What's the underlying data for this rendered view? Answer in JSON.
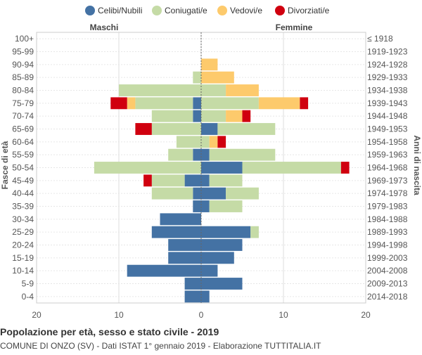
{
  "chart_data": {
    "type": "bar",
    "orientation": "horizontal-pyramid",
    "title": "Popolazione per età, sesso e stato civile - 2019",
    "subtitle": "COMUNE DI ONZO (SV) - Dati ISTAT 1° gennaio 2019 - Elaborazione TUTTITALIA.IT",
    "left_label": "Maschi",
    "right_label": "Femmine",
    "ylabel_left": "Fasce di età",
    "ylabel_right": "Anni di nascita",
    "xlim": [
      -20,
      20
    ],
    "xticks": [
      {
        "value": -20,
        "label": "20"
      },
      {
        "value": -10,
        "label": "10"
      },
      {
        "value": 0,
        "label": "0"
      },
      {
        "value": 10,
        "label": "10"
      },
      {
        "value": 20,
        "label": "20"
      }
    ],
    "series": [
      {
        "key": "celibi",
        "name": "Celibi/Nubili",
        "color": "#4472a4"
      },
      {
        "key": "coniugati",
        "name": "Coniugati/e",
        "color": "#c5dba6"
      },
      {
        "key": "vedovi",
        "name": "Vedovi/e",
        "color": "#fdca6c"
      },
      {
        "key": "divorziati",
        "name": "Divorziati/e",
        "color": "#d0000f"
      }
    ],
    "age_groups": [
      "100+",
      "95-99",
      "90-94",
      "85-89",
      "80-84",
      "75-79",
      "70-74",
      "65-69",
      "60-64",
      "55-59",
      "50-54",
      "45-49",
      "40-44",
      "35-39",
      "30-34",
      "25-29",
      "20-24",
      "15-19",
      "10-14",
      "5-9",
      "0-4"
    ],
    "birth_years": [
      "≤ 1918",
      "1919-1923",
      "1924-1928",
      "1929-1933",
      "1934-1938",
      "1939-1943",
      "1944-1948",
      "1949-1953",
      "1954-1958",
      "1959-1963",
      "1964-1968",
      "1969-1973",
      "1974-1978",
      "1979-1983",
      "1984-1988",
      "1989-1993",
      "1994-1998",
      "1999-2003",
      "2004-2008",
      "2009-2013",
      "2014-2018"
    ],
    "males": {
      "celibi": [
        0,
        0,
        0,
        0,
        0,
        1,
        1,
        0,
        0,
        1,
        0,
        2,
        1,
        1,
        5,
        6,
        4,
        4,
        9,
        2,
        2
      ],
      "coniugati": [
        0,
        0,
        0,
        1,
        10,
        7,
        5,
        6,
        3,
        3,
        13,
        4,
        5,
        0,
        0,
        0,
        0,
        0,
        0,
        0,
        0
      ],
      "vedovi": [
        0,
        0,
        0,
        0,
        0,
        1,
        0,
        0,
        0,
        0,
        0,
        0,
        0,
        0,
        0,
        0,
        0,
        0,
        0,
        0,
        0
      ],
      "divorziati": [
        0,
        0,
        0,
        0,
        0,
        2,
        0,
        2,
        0,
        0,
        0,
        1,
        0,
        0,
        0,
        0,
        0,
        0,
        0,
        0,
        0
      ]
    },
    "females": {
      "celibi": [
        0,
        0,
        0,
        0,
        0,
        0,
        0,
        2,
        0,
        1,
        5,
        1,
        3,
        1,
        0,
        6,
        5,
        4,
        2,
        5,
        1
      ],
      "coniugati": [
        0,
        0,
        0,
        0,
        3,
        7,
        3,
        7,
        1,
        8,
        12,
        4,
        4,
        4,
        0,
        1,
        0,
        0,
        0,
        0,
        0
      ],
      "vedovi": [
        0,
        0,
        2,
        4,
        4,
        5,
        2,
        0,
        1,
        0,
        0,
        0,
        0,
        0,
        0,
        0,
        0,
        0,
        0,
        0,
        0
      ],
      "divorziati": [
        0,
        0,
        0,
        0,
        0,
        1,
        1,
        0,
        1,
        0,
        1,
        0,
        0,
        0,
        0,
        0,
        0,
        0,
        0,
        0,
        0
      ]
    }
  }
}
